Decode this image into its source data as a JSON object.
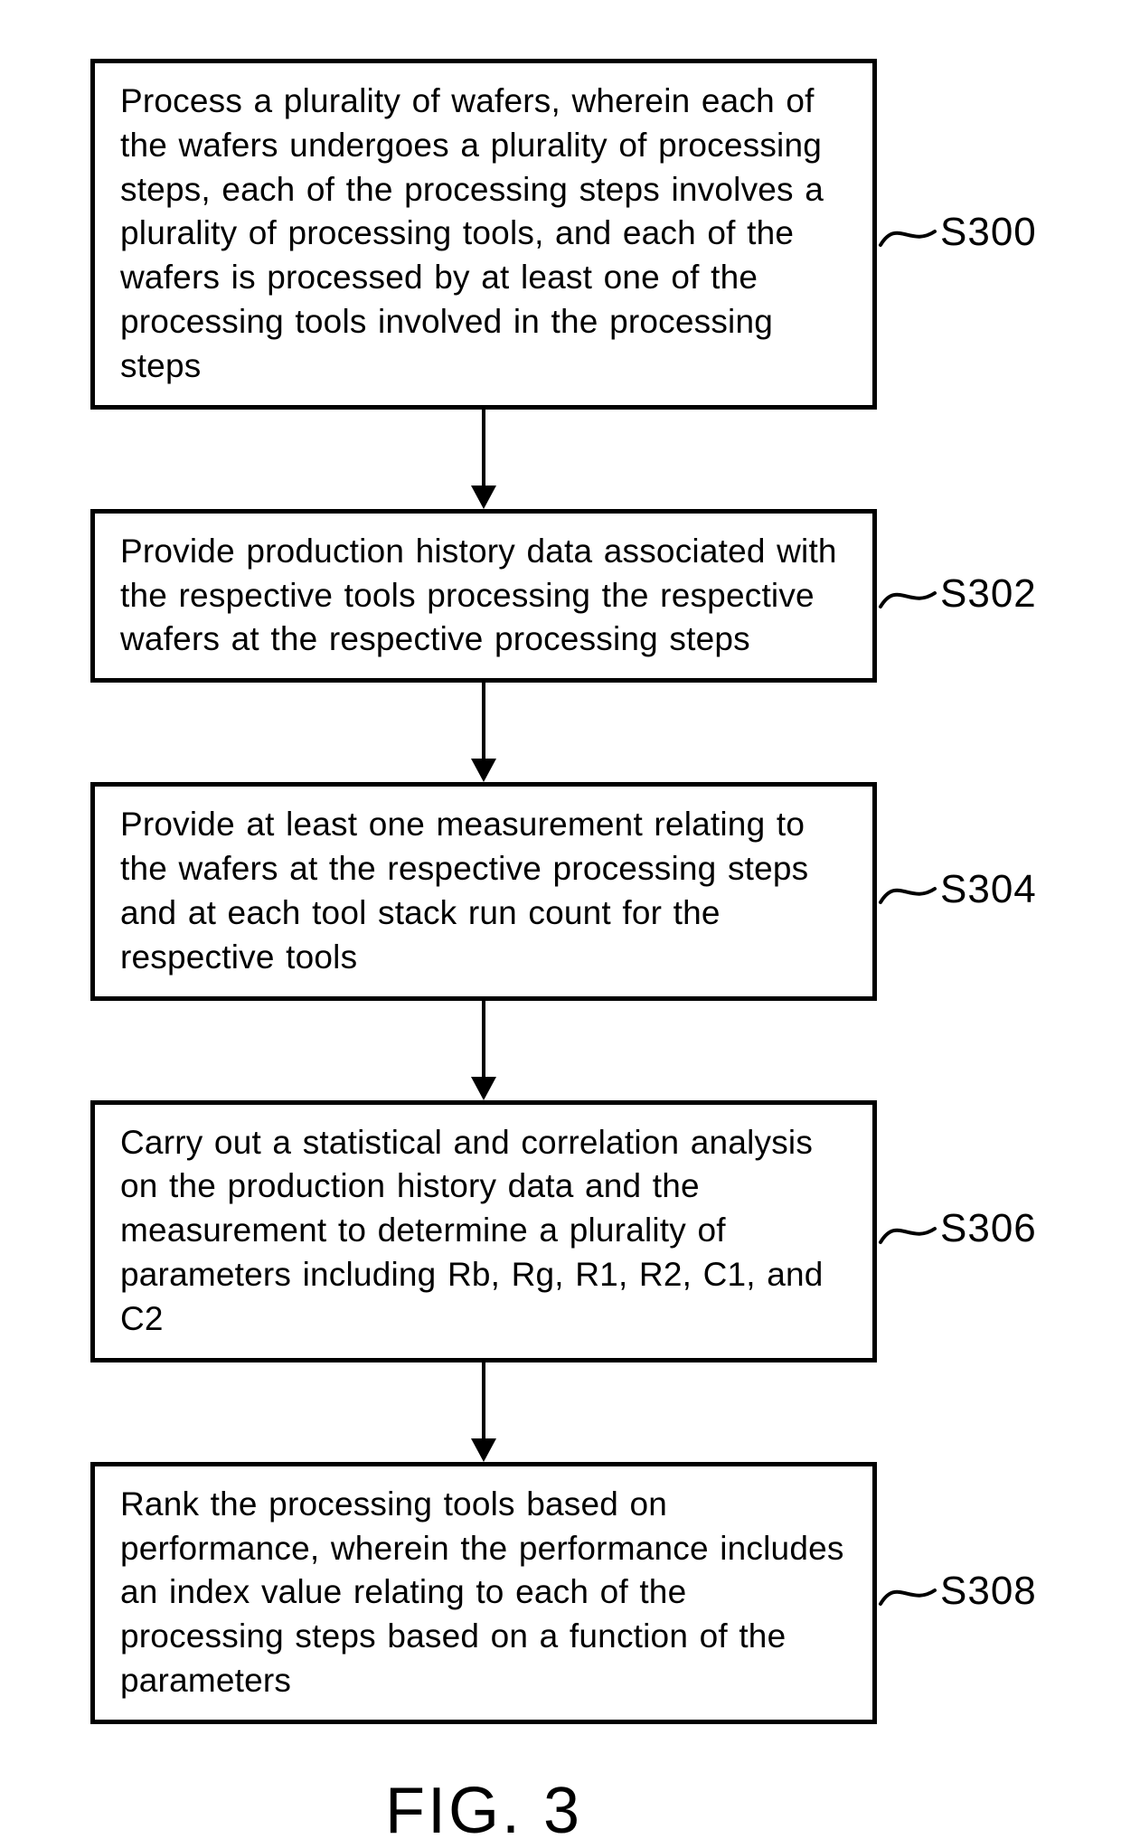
{
  "figure": {
    "caption": "FIG. 3",
    "caption_fontsize": 72,
    "background_color": "#ffffff",
    "stroke_color": "#000000",
    "border_width": 5,
    "font_family": "Futura",
    "box_fontsize": 37,
    "label_fontsize": 44,
    "arrow": {
      "shaft_width": 4,
      "head_width": 28,
      "head_height": 26,
      "length": 110
    },
    "connector": {
      "stroke_width": 4
    },
    "boxes": [
      {
        "id": "S300",
        "label": "S300",
        "text": "Process a plurality of wafers, wherein each of the wafers undergoes a plurality of processing steps, each of the processing steps involves a plurality of processing tools, and each of the wafers is processed by at least one of the processing tools involved in the processing steps"
      },
      {
        "id": "S302",
        "label": "S302",
        "text": "Provide production history data associated with the respective tools processing the respective wafers at the respective processing steps"
      },
      {
        "id": "S304",
        "label": "S304",
        "text": "Provide at least one measurement relating to the wafers at the respective processing steps and at each tool stack run count for the respective tools"
      },
      {
        "id": "S306",
        "label": "S306",
        "text": "Carry out a statistical and correlation analysis on the production history data and the measurement to determine a plurality of parameters including Rb, Rg, R1, R2, C1, and C2"
      },
      {
        "id": "S308",
        "label": "S308",
        "text": "Rank the processing tools based on performance, wherein the performance includes an index value relating to each of the processing steps based on a function of the parameters"
      }
    ]
  }
}
